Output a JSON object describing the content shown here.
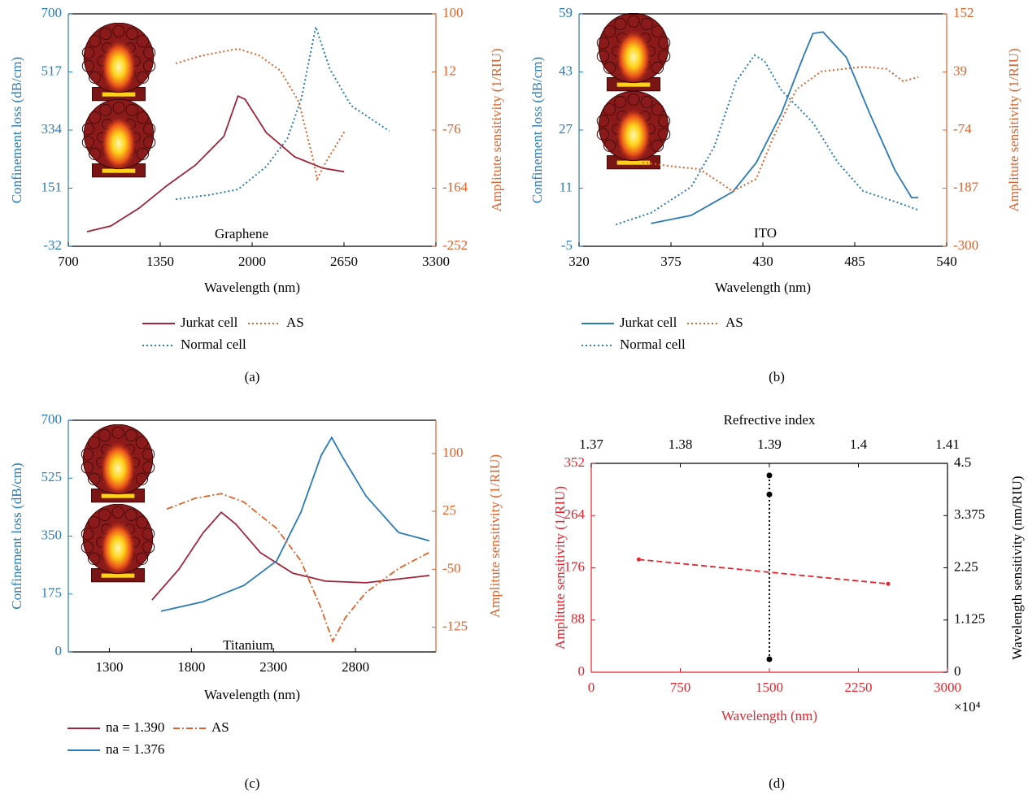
{
  "chart_data": [
    {
      "type": "line",
      "caption": "(a)",
      "annotation": "Graphene",
      "xlabel": "Wavelength (nm)",
      "ylabel": "Confinement loss (dB/cm)",
      "y2label": "Amplitute sensitivity (1/RIU)",
      "xlim": [
        700,
        3300
      ],
      "xticks": [
        700,
        1350,
        2000,
        2650,
        3300
      ],
      "ylim": [
        -32,
        700
      ],
      "yticks": [
        -32,
        151,
        334,
        517,
        700
      ],
      "y2lim": [
        -252,
        100
      ],
      "y2ticks": [
        -252,
        -164,
        -76,
        12,
        100
      ],
      "ycolor": "#2a7ab9",
      "y2color": "#e0622a",
      "xcolor": "#000000",
      "legend": true,
      "insets": true,
      "series": [
        {
          "name": "Jurkat cell",
          "color": "#a0243a",
          "style": "solid",
          "x": [
            832,
            1000,
            1200,
            1400,
            1600,
            1800,
            1900,
            1950,
            2100,
            2300,
            2500,
            2650
          ],
          "values": [
            14,
            32,
            88,
            160,
            224,
            314,
            441,
            431,
            326,
            250,
            214,
            203
          ]
        },
        {
          "name": "Normal cell",
          "color": "#2a7ab9",
          "style": "dotted",
          "x": [
            1460,
            1700,
            1900,
            2100,
            2250,
            2350,
            2450,
            2550,
            2700,
            2970
          ],
          "values": [
            116,
            130,
            147,
            219,
            308,
            436,
            659,
            526,
            411,
            331
          ]
        },
        {
          "name": "AS",
          "color": "#e0622a",
          "style": "dotted",
          "axis": "y2",
          "x": [
            1460,
            1650,
            1900,
            2050,
            2200,
            2330,
            2430,
            2460,
            2520,
            2660
          ],
          "values": [
            25,
            37,
            47,
            37,
            14,
            -33,
            -119,
            -150,
            -125,
            -76
          ]
        }
      ]
    },
    {
      "type": "line",
      "caption": "(b)",
      "annotation": "ITO",
      "xlabel": "Wavelength (nm)",
      "ylabel": "Confinement loss (dB/cm)",
      "y2label": "Amplitute sensitivity (1/RIU)",
      "xlim": [
        320,
        540
      ],
      "xticks": [
        320,
        375,
        430,
        485,
        540
      ],
      "ylim": [
        -5,
        59
      ],
      "yticks": [
        -5,
        11,
        27,
        43,
        59
      ],
      "y2lim": [
        -300,
        152
      ],
      "y2ticks": [
        -300,
        -187,
        -74,
        39,
        152
      ],
      "ycolor": "#2a7ab9",
      "y2color": "#e0622a",
      "xcolor": "#000000",
      "legend": true,
      "insets": true,
      "series": [
        {
          "name": "Jurkat cell",
          "color": "#2a7ab9",
          "style": "solid",
          "x": [
            363,
            387,
            412,
            426,
            441,
            454,
            460,
            466,
            480,
            494,
            509,
            519,
            523
          ],
          "values": [
            1.3,
            3.5,
            10,
            18,
            31.5,
            47,
            53.6,
            54,
            47,
            31.5,
            16,
            8.4,
            8.4
          ]
        },
        {
          "name": "Normal cell",
          "color": "#2a7ab9",
          "style": "dotted",
          "x": [
            342,
            363,
            387,
            401,
            414,
            425,
            431,
            441,
            460,
            475,
            490,
            509,
            523
          ],
          "values": [
            1,
            4.2,
            11.3,
            22.5,
            40.4,
            47.6,
            46,
            38,
            29,
            18,
            10.2,
            7.3,
            5
          ]
        },
        {
          "name": "AS",
          "color": "#e0622a",
          "style": "dotted",
          "axis": "y2",
          "x": [
            358,
            377,
            392,
            401,
            412,
            426,
            436,
            450,
            465,
            490,
            504,
            514,
            523
          ],
          "values": [
            -137,
            -145,
            -150,
            -169,
            -193,
            -169,
            -90,
            5,
            40,
            49,
            45,
            21,
            29
          ]
        }
      ]
    },
    {
      "type": "line",
      "caption": "(c)",
      "annotation": "Titanium",
      "xlabel": "Wavelength (nm)",
      "ylabel": "Confinement loss (dB/cm)",
      "y2label": "Amplitute sensitivity (1/RIU)",
      "xlim": [
        1050,
        3290
      ],
      "xticks": [
        1300,
        1800,
        2300,
        2800
      ],
      "ylim": [
        0,
        700
      ],
      "yticks": [
        0,
        175,
        350,
        525,
        700
      ],
      "y2lim": [
        -157,
        143
      ],
      "y2ticks": [
        -125,
        -50,
        25,
        100
      ],
      "ycolor": "#2a7ab9",
      "y2color": "#e0622a",
      "xcolor": "#000000",
      "legend": true,
      "insets": true,
      "series": [
        {
          "name": "na = 1.390",
          "color": "#a0243a",
          "style": "solid",
          "x": [
            1560,
            1724,
            1873,
            1982,
            2071,
            2220,
            2418,
            2616,
            2864,
            3250
          ],
          "values": [
            157,
            250,
            361,
            422,
            386,
            300,
            238,
            214,
            209,
            231
          ]
        },
        {
          "name": "na = 1.376",
          "color": "#2a7ab9",
          "style": "solid",
          "x": [
            1615,
            1873,
            2120,
            2319,
            2467,
            2591,
            2655,
            2715,
            2864,
            3062,
            3250
          ],
          "values": [
            123,
            152,
            201,
            275,
            422,
            594,
            648,
            594,
            471,
            361,
            336
          ]
        },
        {
          "name": "AS",
          "color": "#e0622a",
          "style": "dashdot",
          "axis": "y2",
          "x": [
            1650,
            1823,
            1982,
            2120,
            2319,
            2467,
            2591,
            2661,
            2740,
            2864,
            3062,
            3250
          ],
          "values": [
            28,
            42,
            48,
            37,
            3,
            -39,
            -101,
            -143,
            -112,
            -80,
            -49,
            -28
          ]
        }
      ]
    },
    {
      "type": "line",
      "caption": "(d)",
      "xlabel": "Wavelength (nm)",
      "x_multiplier": "×10⁴",
      "x2label": "Refrective index",
      "ylabel": "Amplitute sensitivity (1/RIU)",
      "y2label": "Wavelength sensitivity (nm/RIU)",
      "xlim": [
        0,
        3000
      ],
      "xticks": [
        0,
        750,
        1500,
        2250,
        3000
      ],
      "x2lim": [
        1.37,
        1.41
      ],
      "x2ticks": [
        1.37,
        1.38,
        1.39,
        1.4,
        1.41
      ],
      "ylim": [
        0,
        352
      ],
      "yticks": [
        0,
        88,
        176,
        264,
        352
      ],
      "y2lim": [
        0,
        4.5
      ],
      "y2ticks": [
        0,
        1.125,
        2.25,
        3.375,
        4.5
      ],
      "ycolor": "#e8212a",
      "y2color": "#000000",
      "xcolor": "#e8212a",
      "legend": false,
      "insets": false,
      "series": [
        {
          "color": "#e8212a",
          "style": "dashed",
          "marker": true,
          "x": [
            400,
            2500
          ],
          "values": [
            190,
            149
          ]
        },
        {
          "color": "#000000",
          "style": "dotted",
          "marker": true,
          "axis": "y2",
          "xaxis": "x2",
          "x": [
            1.39,
            1.39,
            1.39
          ],
          "values": [
            4.24,
            3.83,
            0.28
          ]
        }
      ]
    }
  ]
}
